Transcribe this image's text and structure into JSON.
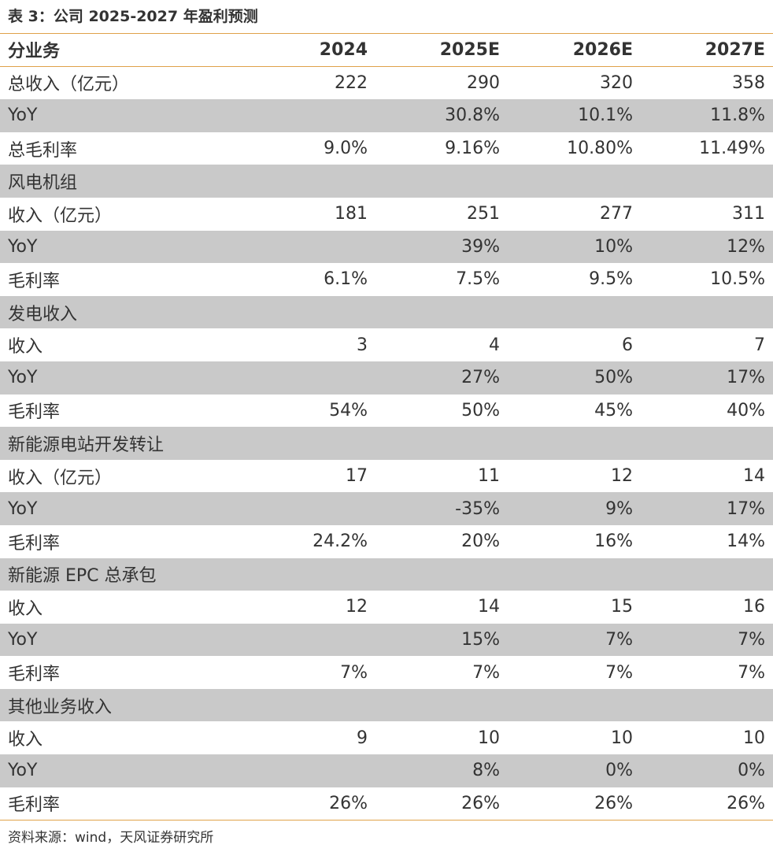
{
  "caption": "表 3：公司 2025-2027 年盈利预测",
  "header": [
    "分业务",
    "2024",
    "2025E",
    "2026E",
    "2027E"
  ],
  "rows": [
    [
      "总收入（亿元）",
      "222",
      "290",
      "320",
      "358"
    ],
    [
      "YoY",
      "",
      "30.8%",
      "10.1%",
      "11.8%"
    ],
    [
      "总毛利率",
      "9.0%",
      "9.16%",
      "10.80%",
      "11.49%"
    ],
    [
      "风电机组",
      "",
      "",
      "",
      ""
    ],
    [
      "收入（亿元）",
      "181",
      "251",
      "277",
      "311"
    ],
    [
      "YoY",
      "",
      "39%",
      "10%",
      "12%"
    ],
    [
      "毛利率",
      "6.1%",
      "7.5%",
      "9.5%",
      "10.5%"
    ],
    [
      "发电收入",
      "",
      "",
      "",
      ""
    ],
    [
      "收入",
      "3",
      "4",
      "6",
      "7"
    ],
    [
      "YoY",
      "",
      "27%",
      "50%",
      "17%"
    ],
    [
      "毛利率",
      "54%",
      "50%",
      "45%",
      "40%"
    ],
    [
      "新能源电站开发转让",
      "",
      "",
      "",
      ""
    ],
    [
      "收入（亿元）",
      "17",
      "11",
      "12",
      "14"
    ],
    [
      "YoY",
      "",
      "-35%",
      "9%",
      "17%"
    ],
    [
      "毛利率",
      "24.2%",
      "20%",
      "16%",
      "14%"
    ],
    [
      "新能源 EPC 总承包",
      "",
      "",
      "",
      ""
    ],
    [
      "收入",
      "12",
      "14",
      "15",
      "16"
    ],
    [
      "YoY",
      "",
      "15%",
      "7%",
      "7%"
    ],
    [
      "毛利率",
      "7%",
      "7%",
      "7%",
      "7%"
    ],
    [
      "其他业务收入",
      "",
      "",
      "",
      ""
    ],
    [
      "收入",
      "9",
      "10",
      "10",
      "10"
    ],
    [
      "YoY",
      "",
      "8%",
      "0%",
      "0%"
    ],
    [
      "毛利率",
      "26%",
      "26%",
      "26%",
      "26%"
    ]
  ],
  "source": "资料来源：wind，天风证券研究所",
  "colors": {
    "rule": "#e0a24a",
    "shade": "#c9c9c9",
    "header_underline": "#4a6fb5",
    "text": "#333333"
  }
}
